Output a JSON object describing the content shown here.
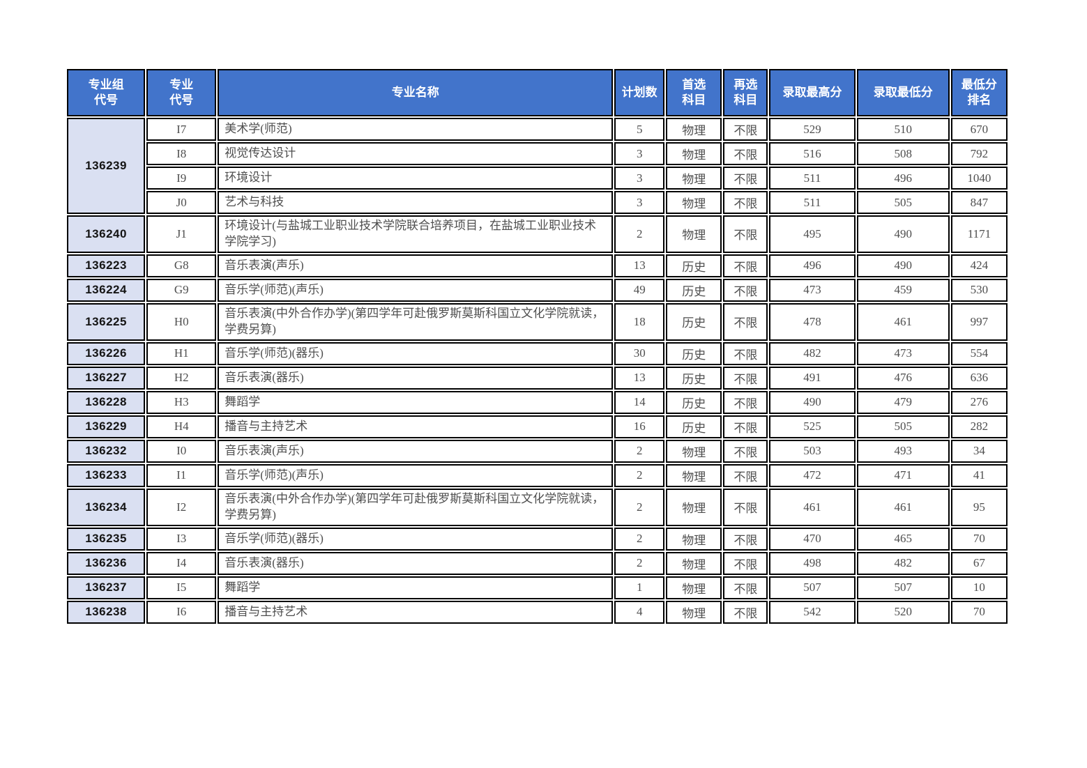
{
  "colors": {
    "header_bg": "#4274CB",
    "header_text": "#FFFFFF",
    "group_cell_bg": "#DAE0F2",
    "border": "#000000",
    "body_text": "#4E4E4E",
    "page_bg": "#FFFFFF"
  },
  "table": {
    "headers": [
      "专业组\n代号",
      "专业\n代号",
      "专业名称",
      "计划数",
      "首选\n科目",
      "再选\n科目",
      "录取最高分",
      "录取最低分",
      "最低分\n排名"
    ],
    "groups": [
      {
        "group_code": "136239",
        "rows": [
          {
            "code": "I7",
            "name": "美术学(师范)",
            "plan": "5",
            "first_subject": "物理",
            "second_subject": "不限",
            "max_score": "529",
            "min_score": "510",
            "min_rank": "670"
          },
          {
            "code": "I8",
            "name": "视觉传达设计",
            "plan": "3",
            "first_subject": "物理",
            "second_subject": "不限",
            "max_score": "516",
            "min_score": "508",
            "min_rank": "792"
          },
          {
            "code": "I9",
            "name": "环境设计",
            "plan": "3",
            "first_subject": "物理",
            "second_subject": "不限",
            "max_score": "511",
            "min_score": "496",
            "min_rank": "1040"
          },
          {
            "code": "J0",
            "name": "艺术与科技",
            "plan": "3",
            "first_subject": "物理",
            "second_subject": "不限",
            "max_score": "511",
            "min_score": "505",
            "min_rank": "847"
          }
        ]
      },
      {
        "group_code": "136240",
        "rows": [
          {
            "code": "J1",
            "name": "环境设计(与盐城工业职业技术学院联合培养项目，在盐城工业职业技术学院学习)",
            "plan": "2",
            "first_subject": "物理",
            "second_subject": "不限",
            "max_score": "495",
            "min_score": "490",
            "min_rank": "1171"
          }
        ]
      },
      {
        "group_code": "136223",
        "rows": [
          {
            "code": "G8",
            "name": "音乐表演(声乐)",
            "plan": "13",
            "first_subject": "历史",
            "second_subject": "不限",
            "max_score": "496",
            "min_score": "490",
            "min_rank": "424"
          }
        ]
      },
      {
        "group_code": "136224",
        "rows": [
          {
            "code": "G9",
            "name": "音乐学(师范)(声乐)",
            "plan": "49",
            "first_subject": "历史",
            "second_subject": "不限",
            "max_score": "473",
            "min_score": "459",
            "min_rank": "530"
          }
        ]
      },
      {
        "group_code": "136225",
        "rows": [
          {
            "code": "H0",
            "name": "音乐表演(中外合作办学)(第四学年可赴俄罗斯莫斯科国立文化学院就读，学费另算)",
            "plan": "18",
            "first_subject": "历史",
            "second_subject": "不限",
            "max_score": "478",
            "min_score": "461",
            "min_rank": "997"
          }
        ]
      },
      {
        "group_code": "136226",
        "rows": [
          {
            "code": "H1",
            "name": "音乐学(师范)(器乐)",
            "plan": "30",
            "first_subject": "历史",
            "second_subject": "不限",
            "max_score": "482",
            "min_score": "473",
            "min_rank": "554"
          }
        ]
      },
      {
        "group_code": "136227",
        "rows": [
          {
            "code": "H2",
            "name": "音乐表演(器乐)",
            "plan": "13",
            "first_subject": "历史",
            "second_subject": "不限",
            "max_score": "491",
            "min_score": "476",
            "min_rank": "636"
          }
        ]
      },
      {
        "group_code": "136228",
        "rows": [
          {
            "code": "H3",
            "name": "舞蹈学",
            "plan": "14",
            "first_subject": "历史",
            "second_subject": "不限",
            "max_score": "490",
            "min_score": "479",
            "min_rank": "276"
          }
        ]
      },
      {
        "group_code": "136229",
        "rows": [
          {
            "code": "H4",
            "name": "播音与主持艺术",
            "plan": "16",
            "first_subject": "历史",
            "second_subject": "不限",
            "max_score": "525",
            "min_score": "505",
            "min_rank": "282"
          }
        ]
      },
      {
        "group_code": "136232",
        "rows": [
          {
            "code": "I0",
            "name": "音乐表演(声乐)",
            "plan": "2",
            "first_subject": "物理",
            "second_subject": "不限",
            "max_score": "503",
            "min_score": "493",
            "min_rank": "34"
          }
        ]
      },
      {
        "group_code": "136233",
        "rows": [
          {
            "code": "I1",
            "name": "音乐学(师范)(声乐)",
            "plan": "2",
            "first_subject": "物理",
            "second_subject": "不限",
            "max_score": "472",
            "min_score": "471",
            "min_rank": "41"
          }
        ]
      },
      {
        "group_code": "136234",
        "rows": [
          {
            "code": "I2",
            "name": "音乐表演(中外合作办学)(第四学年可赴俄罗斯莫斯科国立文化学院就读，学费另算)",
            "plan": "2",
            "first_subject": "物理",
            "second_subject": "不限",
            "max_score": "461",
            "min_score": "461",
            "min_rank": "95"
          }
        ]
      },
      {
        "group_code": "136235",
        "rows": [
          {
            "code": "I3",
            "name": "音乐学(师范)(器乐)",
            "plan": "2",
            "first_subject": "物理",
            "second_subject": "不限",
            "max_score": "470",
            "min_score": "465",
            "min_rank": "70"
          }
        ]
      },
      {
        "group_code": "136236",
        "rows": [
          {
            "code": "I4",
            "name": "音乐表演(器乐)",
            "plan": "2",
            "first_subject": "物理",
            "second_subject": "不限",
            "max_score": "498",
            "min_score": "482",
            "min_rank": "67"
          }
        ]
      },
      {
        "group_code": "136237",
        "rows": [
          {
            "code": "I5",
            "name": "舞蹈学",
            "plan": "1",
            "first_subject": "物理",
            "second_subject": "不限",
            "max_score": "507",
            "min_score": "507",
            "min_rank": "10"
          }
        ]
      },
      {
        "group_code": "136238",
        "rows": [
          {
            "code": "I6",
            "name": "播音与主持艺术",
            "plan": "4",
            "first_subject": "物理",
            "second_subject": "不限",
            "max_score": "542",
            "min_score": "520",
            "min_rank": "70"
          }
        ]
      }
    ]
  }
}
